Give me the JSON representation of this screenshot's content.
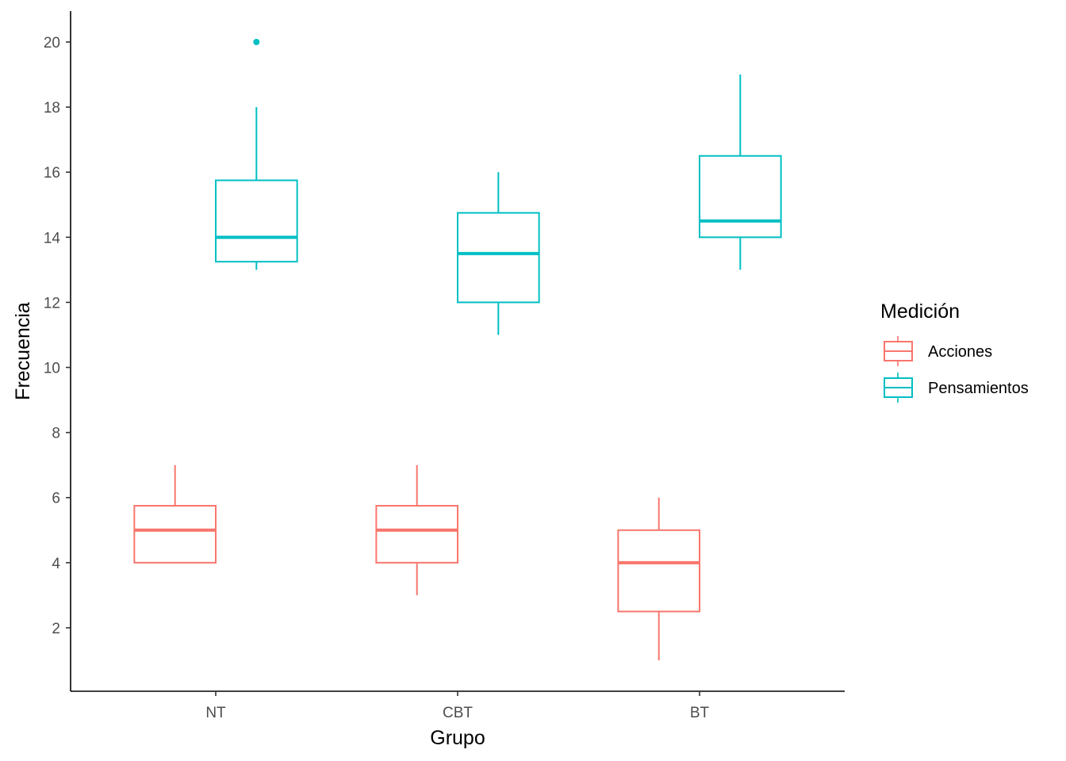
{
  "chart_data": {
    "type": "boxplot",
    "title": "",
    "xlabel": "Grupo",
    "ylabel": "Frecuencia",
    "categories": [
      "NT",
      "CBT",
      "BT"
    ],
    "ylim": [
      0.05,
      20.95
    ],
    "yticks": [
      2,
      4,
      6,
      8,
      10,
      12,
      14,
      16,
      18,
      20
    ],
    "ytick_labels": [
      "2",
      "4",
      "6",
      "8",
      "10",
      "12",
      "14",
      "16",
      "18",
      "20"
    ],
    "grid": false,
    "legend": {
      "title": "Medición",
      "position": "right"
    },
    "series": [
      {
        "name": "Acciones",
        "color": "#F8766D",
        "boxes": [
          {
            "category": "NT",
            "min": 4,
            "q1": 4,
            "median": 5,
            "q3": 5.75,
            "max": 7,
            "outliers": []
          },
          {
            "category": "CBT",
            "min": 3,
            "q1": 4,
            "median": 5,
            "q3": 5.75,
            "max": 7,
            "outliers": []
          },
          {
            "category": "BT",
            "min": 1,
            "q1": 2.5,
            "median": 4,
            "q3": 5,
            "max": 6,
            "outliers": []
          }
        ]
      },
      {
        "name": "Pensamientos",
        "color": "#00BFC4",
        "boxes": [
          {
            "category": "NT",
            "min": 13,
            "q1": 13.25,
            "median": 14,
            "q3": 15.75,
            "max": 18,
            "outliers": [
              20
            ]
          },
          {
            "category": "CBT",
            "min": 11,
            "q1": 12,
            "median": 13.5,
            "q3": 14.75,
            "max": 16,
            "outliers": []
          },
          {
            "category": "BT",
            "min": 13,
            "q1": 14,
            "median": 14.5,
            "q3": 16.5,
            "max": 19,
            "outliers": []
          }
        ]
      }
    ]
  }
}
